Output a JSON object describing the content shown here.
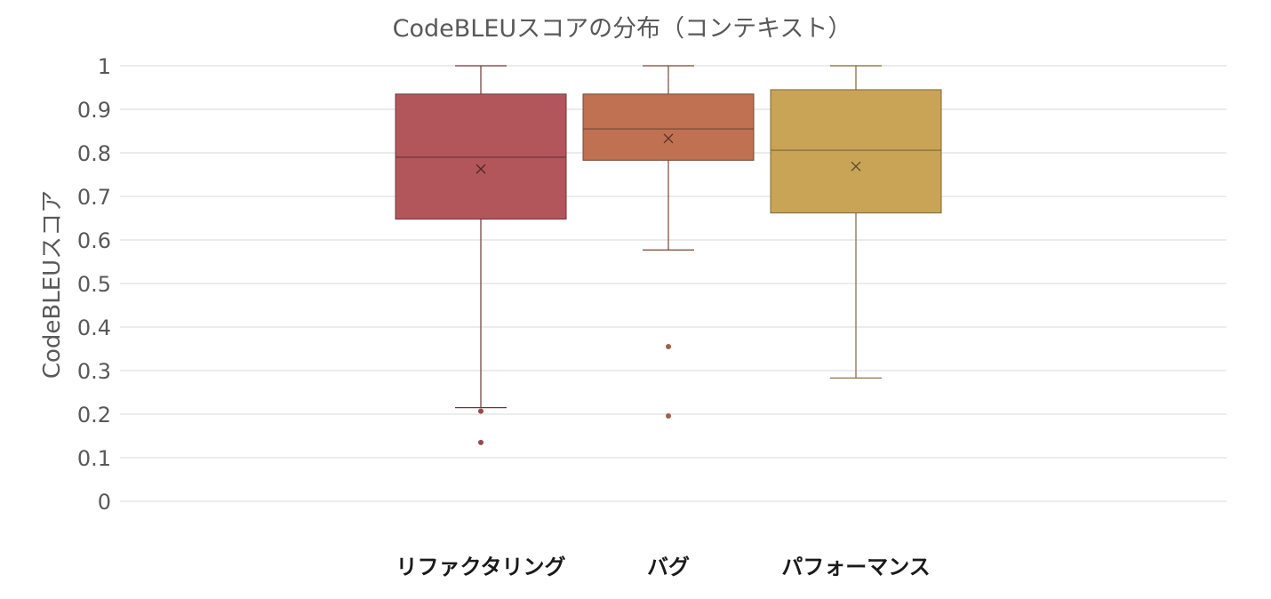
{
  "chart_data": {
    "type": "box",
    "title": "CodeBLEUスコアの分布（コンテキスト）",
    "xlabel": "",
    "ylabel": "CodeBLEUスコア",
    "ylim": [
      0,
      1
    ],
    "yticks": [
      "0",
      "0.1",
      "0.2",
      "0.3",
      "0.4",
      "0.5",
      "0.6",
      "0.7",
      "0.8",
      "0.9",
      "1"
    ],
    "grid": true,
    "categories": [
      "リファクタリング",
      "バグ",
      "パフォーマンス"
    ],
    "boxes": [
      {
        "category": "リファクタリング",
        "whisker_low": 0.215,
        "q1": 0.648,
        "median": 0.79,
        "q3": 0.935,
        "whisker_high": 1.0,
        "mean": 0.763,
        "outliers": [
          0.207,
          0.135
        ],
        "color": "#b3565c"
      },
      {
        "category": "バグ",
        "whisker_low": 0.577,
        "q1": 0.783,
        "median": 0.855,
        "q3": 0.935,
        "whisker_high": 1.0,
        "mean": 0.833,
        "outliers": [
          0.355,
          0.196
        ],
        "color": "#bf7152"
      },
      {
        "category": "パフォーマンス",
        "whisker_low": 0.283,
        "q1": 0.662,
        "median": 0.806,
        "q3": 0.945,
        "whisker_high": 1.0,
        "mean": 0.769,
        "outliers": [],
        "color": "#c9a457"
      }
    ]
  }
}
